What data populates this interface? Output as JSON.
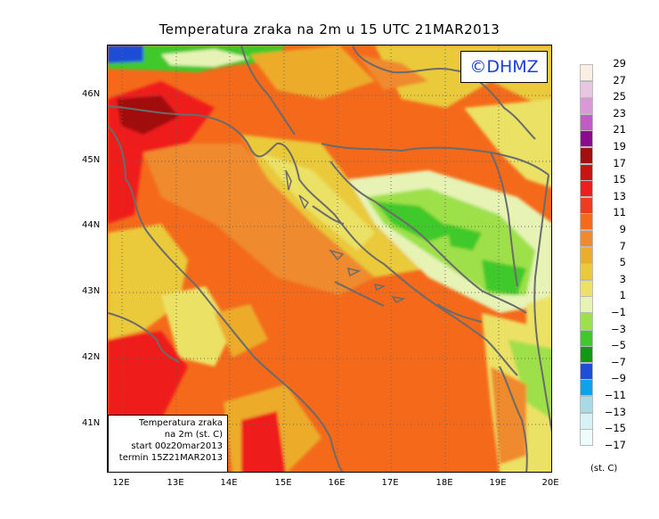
{
  "title": "Temperatura zraka na 2m u 15 UTC 21MAR2013",
  "copyright": "©DHMZ",
  "infobox": {
    "line1": "Temperatura zraka",
    "line2": "na 2m (st. C)",
    "line3": "start 00z20mar2013",
    "line4": "termin 15Z21MAR2013"
  },
  "axes": {
    "lat_labels": [
      "46N",
      "45N",
      "44N",
      "43N",
      "42N",
      "41N"
    ],
    "lon_labels": [
      "12E",
      "13E",
      "14E",
      "15E",
      "16E",
      "17E",
      "18E",
      "19E",
      "20E"
    ]
  },
  "legend": {
    "unit": "(st. C)",
    "levels": [
      "29",
      "27",
      "25",
      "23",
      "21",
      "19",
      "17",
      "15",
      "13",
      "11",
      "9",
      "7",
      "5",
      "3",
      "1",
      "−1",
      "−3",
      "−5",
      "−7",
      "−9",
      "−11",
      "−13",
      "−15",
      "−17"
    ],
    "colors": [
      "#fbeee3",
      "#e6c6e1",
      "#d79ad7",
      "#c25ac8",
      "#8b0a8e",
      "#a10f10",
      "#c81414",
      "#ef1e1e",
      "#f03b1f",
      "#f46a1a",
      "#ef8a2f",
      "#ecac2c",
      "#eac93a",
      "#ebe165",
      "#e6f3b5",
      "#9ee04a",
      "#3fc92a",
      "#109a14",
      "#1f4ed6",
      "#0fa2ec",
      "#a7dce7",
      "#d6f2f5",
      "#eefcfc",
      "#ffffff"
    ]
  }
}
